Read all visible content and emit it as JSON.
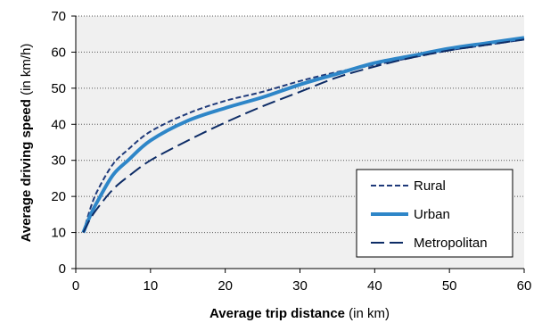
{
  "chart_data": {
    "type": "line",
    "xlabel": "Average trip distance",
    "xlabel_unit": "(in km)",
    "ylabel": "Average driving speed",
    "ylabel_unit": "(in km/h)",
    "xlim": [
      0,
      60
    ],
    "ylim": [
      0,
      70
    ],
    "xticks": [
      0,
      10,
      20,
      30,
      40,
      50,
      60
    ],
    "yticks": [
      0,
      10,
      20,
      30,
      40,
      50,
      60,
      70
    ],
    "grid": "horizontal dotted",
    "plot_background": "#f0f0f0",
    "legend_position": "bottom-right",
    "series": [
      {
        "name": "Rural",
        "color": "#1f3a7a",
        "style": "short-dash",
        "x": [
          1,
          2,
          3,
          5,
          7,
          10,
          15,
          20,
          25,
          30,
          35,
          40,
          45,
          50,
          55,
          60
        ],
        "y": [
          10,
          17,
          22,
          29,
          33,
          38,
          43,
          46.5,
          49,
          52,
          54.5,
          56.5,
          58.5,
          60.5,
          62,
          63.5
        ]
      },
      {
        "name": "Urban",
        "color": "#2e86c8",
        "style": "solid",
        "x": [
          1,
          2,
          3,
          5,
          7,
          10,
          15,
          20,
          25,
          30,
          35,
          40,
          45,
          50,
          55,
          60
        ],
        "y": [
          10,
          15,
          19,
          26,
          30,
          35.5,
          41,
          44.5,
          47.5,
          51,
          54,
          57,
          59,
          61,
          62.5,
          64
        ]
      },
      {
        "name": "Metropolitan",
        "color": "#0d2c66",
        "style": "long-dash",
        "x": [
          1,
          2,
          3,
          5,
          7,
          10,
          15,
          20,
          25,
          30,
          35,
          40,
          45,
          50,
          55,
          60
        ],
        "y": [
          10,
          14,
          17,
          22,
          25.5,
          30,
          35.5,
          40.5,
          45,
          49,
          53,
          56,
          58.5,
          60.5,
          62,
          63.5
        ]
      }
    ]
  }
}
